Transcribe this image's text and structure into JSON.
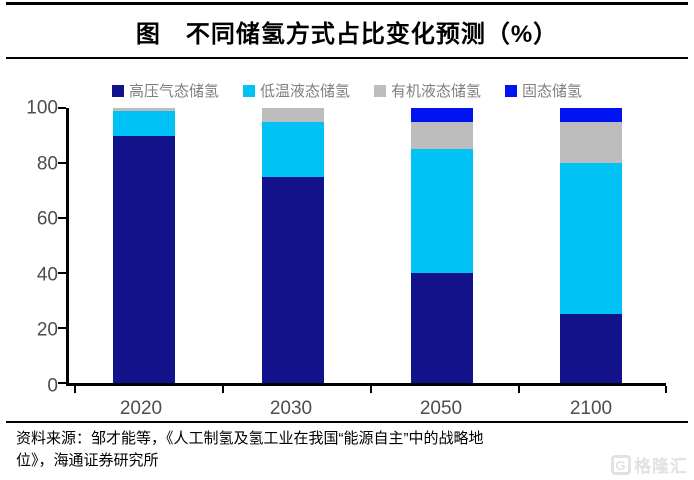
{
  "title": "图　不同储氢方式占比变化预测（%）",
  "chart_data": {
    "type": "bar",
    "stacked": true,
    "categories": [
      "2020",
      "2030",
      "2050",
      "2100"
    ],
    "series": [
      {
        "name": "高压气态储氢",
        "color": "#12128a",
        "values": [
          90,
          75,
          40,
          25
        ]
      },
      {
        "name": "低温液态储氢",
        "color": "#00c2f5",
        "values": [
          9,
          20,
          45,
          55
        ]
      },
      {
        "name": "有机液态储氢",
        "color": "#bdbdbd",
        "values": [
          1,
          5,
          10,
          15
        ]
      },
      {
        "name": "固态储氢",
        "color": "#0013f2",
        "values": [
          0,
          0,
          5,
          5
        ]
      }
    ],
    "title": "不同储氢方式占比变化预测（%）",
    "xlabel": "",
    "ylabel": "",
    "ylim": [
      0,
      100
    ],
    "yticks": [
      0,
      20,
      40,
      60,
      80,
      100
    ],
    "grid": false,
    "legend_position": "top"
  },
  "source": {
    "lines": [
      "资料来源：邹才能等，《人工制氢及氢工业在我国“能源自主”中的战略地",
      "位》，海通证券研究所"
    ]
  },
  "watermark": {
    "logo": "G",
    "text": "格隆汇"
  }
}
